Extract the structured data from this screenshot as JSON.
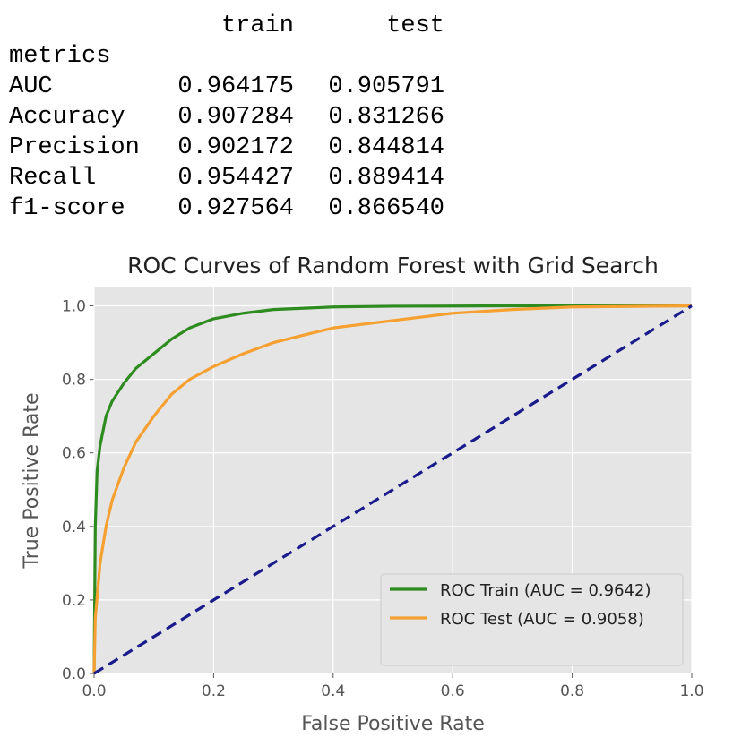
{
  "table": {
    "columns": [
      "train",
      "test"
    ],
    "index_name": "metrics",
    "rows": [
      [
        "AUC",
        "0.964175",
        "0.905791"
      ],
      [
        "Accuracy",
        "0.907284",
        "0.831266"
      ],
      [
        "Precision",
        "0.902172",
        "0.844814"
      ],
      [
        "Recall",
        "0.954427",
        "0.889414"
      ],
      [
        "f1-score",
        "0.927564",
        "0.866540"
      ]
    ]
  },
  "chart_data": {
    "type": "line",
    "title": "ROC Curves of Random Forest with Grid Search",
    "xlabel": "False Positive Rate",
    "ylabel": "True Positive Rate",
    "xlim": [
      0,
      1
    ],
    "ylim": [
      0,
      1.05
    ],
    "xticks": [
      {
        "value": 0,
        "label": "0.0"
      },
      0.2,
      0.4,
      0.6,
      0.8,
      {
        "value": 1,
        "label": "1.0"
      }
    ],
    "yticks": [
      {
        "value": 0,
        "label": "0.0"
      },
      0.2,
      0.4,
      0.6,
      0.8,
      {
        "value": 1,
        "label": "1.0"
      }
    ],
    "grid": true,
    "legend": "lower right",
    "series": [
      {
        "name": "ROC Train (AUC = 0.9642)",
        "color": "#2e8b1f",
        "x": [
          0,
          0.002,
          0.005,
          0.01,
          0.02,
          0.03,
          0.05,
          0.07,
          0.1,
          0.13,
          0.16,
          0.2,
          0.25,
          0.3,
          0.4,
          0.5,
          0.7,
          1
        ],
        "values": [
          0,
          0.4,
          0.55,
          0.62,
          0.7,
          0.74,
          0.79,
          0.83,
          0.87,
          0.91,
          0.94,
          0.965,
          0.98,
          0.99,
          0.997,
          0.999,
          1,
          1
        ]
      },
      {
        "name": "ROC Test (AUC = 0.9058)",
        "color": "#f5a030",
        "x": [
          0,
          0.002,
          0.01,
          0.02,
          0.03,
          0.05,
          0.07,
          0.1,
          0.13,
          0.16,
          0.2,
          0.25,
          0.3,
          0.35,
          0.4,
          0.5,
          0.6,
          0.7,
          0.8,
          1
        ],
        "values": [
          0,
          0.15,
          0.3,
          0.4,
          0.47,
          0.56,
          0.63,
          0.7,
          0.76,
          0.8,
          0.835,
          0.87,
          0.9,
          0.92,
          0.94,
          0.96,
          0.98,
          0.99,
          0.997,
          1
        ]
      },
      {
        "color": "#1a1a8c",
        "linestyle": "dashed",
        "x": [
          0,
          1
        ],
        "values": [
          0,
          1
        ]
      }
    ]
  }
}
